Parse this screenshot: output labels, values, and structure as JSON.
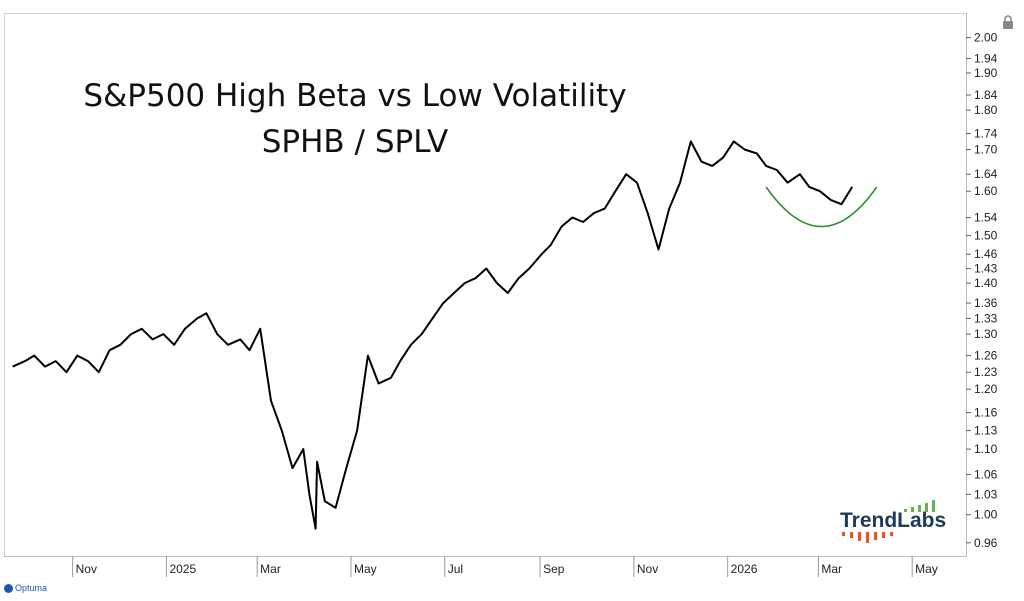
{
  "chart_data": {
    "type": "line",
    "title": "S&P500 High Beta vs Low Volatility",
    "subtitle": "SPHB / SPLV",
    "y_scale": "log",
    "ylim": [
      0.95,
      2.04
    ],
    "y_ticks": [
      "2.00",
      "1.94",
      "1.90",
      "1.84",
      "1.80",
      "1.74",
      "1.70",
      "1.64",
      "1.60",
      "1.54",
      "1.50",
      "1.46",
      "1.43",
      "1.40",
      "1.36",
      "1.33",
      "1.30",
      "1.26",
      "1.23",
      "1.20",
      "1.16",
      "1.13",
      "1.10",
      "1.06",
      "1.03",
      "1.00",
      "0.96"
    ],
    "x_ticks": [
      "Nov",
      "2025",
      "Mar",
      "May",
      "Jul",
      "Sep",
      "Nov",
      "2026",
      "Mar",
      "May"
    ],
    "series": [
      {
        "color": "#000000",
        "x": [
          "2024-09-23",
          "2024-10-01",
          "2024-10-07",
          "2024-10-14",
          "2024-10-21",
          "2024-10-28",
          "2024-11-04",
          "2024-11-11",
          "2024-11-18",
          "2024-11-25",
          "2024-12-02",
          "2024-12-09",
          "2024-12-16",
          "2024-12-23",
          "2024-12-30",
          "2025-01-06",
          "2025-01-13",
          "2025-01-21",
          "2025-01-27",
          "2025-02-03",
          "2025-02-10",
          "2025-02-18",
          "2025-02-24",
          "2025-03-03",
          "2025-03-10",
          "2025-03-17",
          "2025-03-24",
          "2025-03-31",
          "2025-04-04",
          "2025-04-08",
          "2025-04-09",
          "2025-04-14",
          "2025-04-21",
          "2025-04-28",
          "2025-05-05",
          "2025-05-12",
          "2025-05-19",
          "2025-05-27",
          "2025-06-02",
          "2025-06-09",
          "2025-06-16",
          "2025-06-23",
          "2025-06-30",
          "2025-07-07",
          "2025-07-14",
          "2025-07-21",
          "2025-07-28",
          "2025-08-04",
          "2025-08-11",
          "2025-08-18",
          "2025-08-25",
          "2025-09-02",
          "2025-09-08",
          "2025-09-15",
          "2025-09-22",
          "2025-09-29",
          "2025-10-06",
          "2025-10-13",
          "2025-10-20",
          "2025-10-27",
          "2025-11-03",
          "2025-11-10",
          "2025-11-17",
          "2025-11-24",
          "2025-12-01",
          "2025-12-08",
          "2025-12-15",
          "2025-12-22",
          "2025-12-29",
          "2026-01-05",
          "2026-01-12",
          "2026-01-20",
          "2026-01-26",
          "2026-02-02",
          "2026-02-09",
          "2026-02-17",
          "2026-02-23",
          "2026-03-02",
          "2026-03-09",
          "2026-03-16",
          "2026-03-23"
        ],
        "values": [
          1.24,
          1.25,
          1.26,
          1.24,
          1.25,
          1.23,
          1.26,
          1.25,
          1.23,
          1.27,
          1.28,
          1.3,
          1.31,
          1.29,
          1.3,
          1.28,
          1.31,
          1.33,
          1.34,
          1.3,
          1.28,
          1.29,
          1.27,
          1.31,
          1.18,
          1.13,
          1.07,
          1.1,
          1.03,
          0.98,
          1.08,
          1.02,
          1.01,
          1.07,
          1.13,
          1.26,
          1.21,
          1.22,
          1.25,
          1.28,
          1.3,
          1.33,
          1.36,
          1.38,
          1.4,
          1.41,
          1.43,
          1.4,
          1.38,
          1.41,
          1.43,
          1.46,
          1.48,
          1.52,
          1.54,
          1.53,
          1.55,
          1.56,
          1.6,
          1.64,
          1.62,
          1.55,
          1.47,
          1.56,
          1.62,
          1.72,
          1.67,
          1.66,
          1.68,
          1.72,
          1.7,
          1.69,
          1.66,
          1.65,
          1.62,
          1.64,
          1.61,
          1.6,
          1.58,
          1.57,
          1.61
        ]
      }
    ],
    "annotation": {
      "type": "arc",
      "color": "#2e8b2e",
      "x_from": "2026-01-26",
      "x_to": "2026-04-08",
      "y_top": 1.61,
      "y_bottom": 1.52
    },
    "grid": false,
    "legend": "none"
  },
  "logo": {
    "text": "TrendLabs",
    "text_color": "#1f3a5a",
    "bar_up_color": "#6ab04c",
    "bar_down_color": "#e8542a"
  },
  "footer": {
    "brand": "Optuma",
    "color": "#1a5aa8"
  },
  "lock_icon": "lock-icon"
}
